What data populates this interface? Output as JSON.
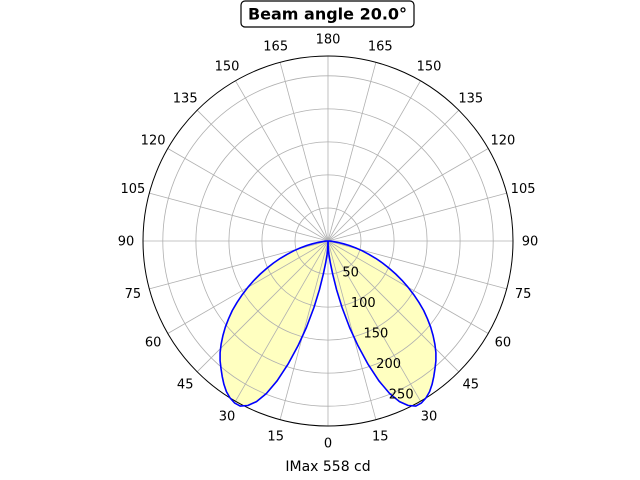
{
  "chart_data": {
    "type": "polar",
    "title": "Beam angle 20.0°",
    "xlabel": "IMax 558 cd",
    "angle_ticks": [
      "0",
      "15",
      "30",
      "45",
      "60",
      "75",
      "90",
      "105",
      "120",
      "135",
      "150",
      "165",
      "180",
      "165",
      "150",
      "135",
      "120",
      "105",
      "90",
      "75",
      "60",
      "45",
      "30",
      "15"
    ],
    "radial_ticks": [
      "50",
      "100",
      "150",
      "200",
      "250"
    ],
    "rlim": [
      0,
      280
    ],
    "grid": true,
    "line_color": "#0000ff",
    "fill_color": "#ffffc0",
    "series": [
      {
        "angles_deg": [
          0,
          2,
          4,
          6,
          8,
          10,
          12,
          14,
          16,
          18,
          20,
          22,
          24,
          26,
          28,
          30,
          32,
          34,
          36,
          38,
          40,
          42,
          44,
          46,
          48,
          50,
          52,
          54,
          56,
          58,
          60,
          62,
          64,
          66,
          68,
          70,
          72,
          74,
          76,
          78,
          80,
          82,
          84,
          86,
          88,
          90
        ],
        "r": [
          0,
          8,
          20,
          33,
          50,
          75,
          103,
          135,
          165,
          196,
          225,
          249,
          266,
          277,
          283,
          283,
          280,
          275,
          268,
          260,
          252,
          244,
          235,
          225,
          214,
          203,
          191,
          179,
          166,
          153,
          140,
          127,
          114,
          101,
          89,
          77,
          65,
          54,
          43,
          33,
          24,
          15,
          8,
          3,
          1,
          0
        ]
      }
    ]
  }
}
